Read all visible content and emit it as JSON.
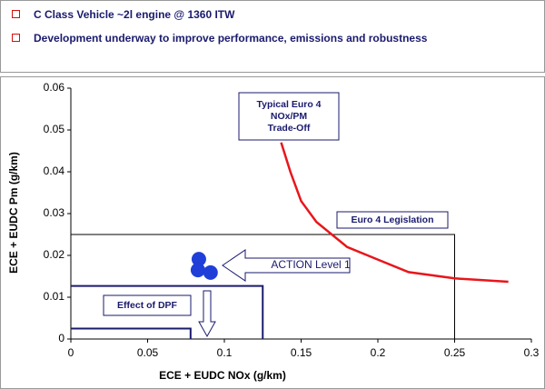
{
  "bullets": [
    "C Class Vehicle ~2l engine @ 1360 ITW",
    "Development underway to improve performance, emissions and robustness"
  ],
  "chart_data": {
    "type": "line",
    "x_label": "ECE + EUDC NOx (g/km)",
    "y_label": "ECE + EUDC Pm (g/km)",
    "xlim": [
      0,
      0.3
    ],
    "xticks": [
      0,
      0.05,
      0.1,
      0.15,
      0.2,
      0.25,
      0.3
    ],
    "ylim": [
      0,
      0.06
    ],
    "yticks": [
      0,
      0.01,
      0.02,
      0.03,
      0.04,
      0.05,
      0.06
    ],
    "series": [
      {
        "color": "#e8161b",
        "x": [
          0.137,
          0.143,
          0.15,
          0.16,
          0.17,
          0.18,
          0.2,
          0.22,
          0.25,
          0.285
        ],
        "values": [
          0.047,
          0.04,
          0.033,
          0.028,
          0.025,
          0.022,
          0.019,
          0.016,
          0.0145,
          0.0137
        ]
      }
    ],
    "points": {
      "color": "#1f3fd8",
      "x": [
        0.0834,
        0.0828,
        0.091
      ],
      "values": [
        0.0191,
        0.0165,
        0.0159
      ]
    },
    "limits": [
      {
        "color": "#000000",
        "x": 0.25,
        "y": 0.025
      },
      {
        "color": "#1a1a6e",
        "x": 0.125,
        "y": 0.0127
      },
      {
        "color": "#1a1a6e",
        "x": 0.078,
        "y": 0.0025
      }
    ],
    "annotations": [
      {
        "lines": [
          "Typical Euro 4",
          "NOx/PM",
          "Trade-Off"
        ]
      },
      {
        "lines": [
          "Euro 4 Legislation"
        ]
      },
      {
        "lines": [
          "ACTION Level 1"
        ]
      },
      {
        "lines": [
          "Effect of DPF"
        ]
      }
    ]
  }
}
